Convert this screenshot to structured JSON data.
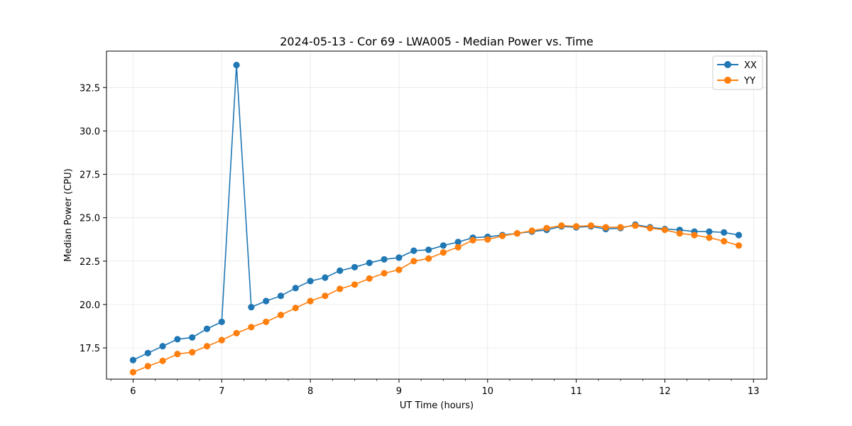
{
  "chart_data": {
    "type": "line",
    "title": "2024-05-13 - Cor 69 - LWA005 - Median Power vs. Time",
    "xlabel": "UT Time (hours)",
    "ylabel": "Median Power (CPU)",
    "xlim": [
      5.7,
      13.15
    ],
    "ylim": [
      15.7,
      34.6
    ],
    "xticks": [
      6,
      7,
      8,
      9,
      10,
      11,
      12,
      13
    ],
    "xtick_labels": [
      "6",
      "7",
      "8",
      "9",
      "10",
      "11",
      "12",
      "13"
    ],
    "yticks": [
      17.5,
      20.0,
      22.5,
      25.0,
      27.5,
      30.0,
      32.5
    ],
    "ytick_labels": [
      "17.5",
      "20.0",
      "22.5",
      "25.0",
      "27.5",
      "30.0",
      "32.5"
    ],
    "grid": true,
    "legend_position": "top-right",
    "x": [
      6.0,
      6.1667,
      6.3333,
      6.5,
      6.6667,
      6.8333,
      7.0,
      7.1667,
      7.3333,
      7.5,
      7.6667,
      7.8333,
      8.0,
      8.1667,
      8.3333,
      8.5,
      8.6667,
      8.8333,
      9.0,
      9.1667,
      9.3333,
      9.5,
      9.6667,
      9.8333,
      10.0,
      10.1667,
      10.3333,
      10.5,
      10.6667,
      10.8333,
      11.0,
      11.1667,
      11.3333,
      11.5,
      11.6667,
      11.8333,
      12.0,
      12.1667,
      12.3333,
      12.5,
      12.6667,
      12.8333
    ],
    "series": [
      {
        "name": "XX",
        "color": "#1f77b4",
        "values": [
          16.8,
          17.2,
          17.6,
          18.0,
          18.1,
          18.6,
          19.0,
          33.8,
          19.85,
          20.2,
          20.5,
          20.95,
          21.35,
          21.55,
          21.95,
          22.15,
          22.4,
          22.6,
          22.7,
          23.1,
          23.15,
          23.4,
          23.6,
          23.85,
          23.9,
          24.0,
          24.1,
          24.2,
          24.3,
          24.5,
          24.45,
          24.5,
          24.35,
          24.4,
          24.6,
          24.45,
          24.35,
          24.3,
          24.2,
          24.2,
          24.15,
          24.0
        ]
      },
      {
        "name": "YY",
        "color": "#ff7f0e",
        "values": [
          16.1,
          16.45,
          16.75,
          17.15,
          17.25,
          17.6,
          17.95,
          18.35,
          18.7,
          19.0,
          19.4,
          19.8,
          20.2,
          20.5,
          20.9,
          21.15,
          21.5,
          21.8,
          22.0,
          22.5,
          22.65,
          23.0,
          23.3,
          23.7,
          23.75,
          23.95,
          24.1,
          24.25,
          24.4,
          24.55,
          24.5,
          24.55,
          24.45,
          24.45,
          24.55,
          24.4,
          24.3,
          24.1,
          24.0,
          23.85,
          23.65,
          23.4
        ]
      }
    ]
  }
}
